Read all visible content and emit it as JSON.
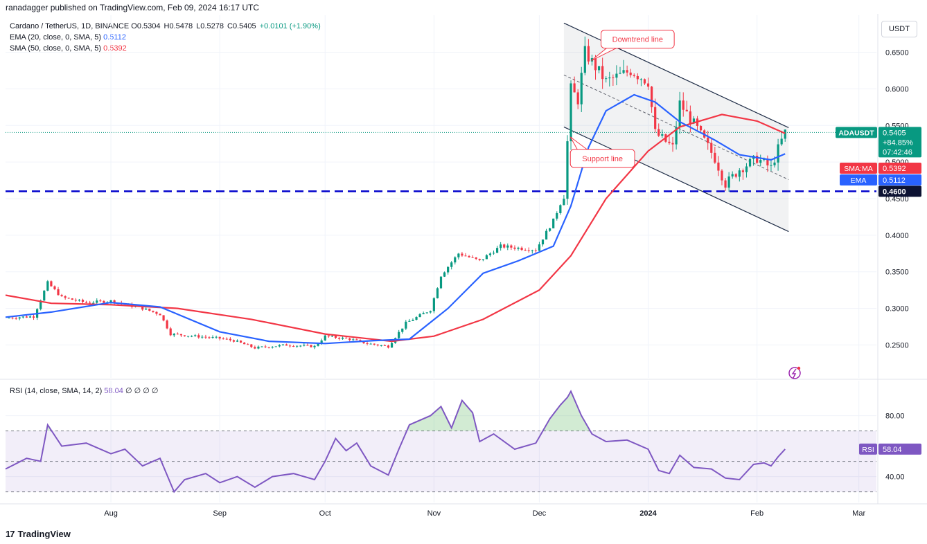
{
  "header": {
    "text": "ranadagger published on TradingView.com, Feb 09, 2024 16:17 UTC"
  },
  "legend": {
    "symbol": "Cardano / TetherUS, 1D, BINANCE",
    "o": "O0.5304",
    "h": "H0.5478",
    "l": "L0.5278",
    "c": "C0.5405",
    "change": "+0.0101 (+1.90%)",
    "ema_label": "EMA (20, close, 0, SMA, 5)",
    "ema_value": "0.5112",
    "sma_label": "SMA (50, close, 0, SMA, 5)",
    "sma_value": "0.5392",
    "rsi_label": "RSI (14, close, SMA, 14, 2)",
    "rsi_value": "58.04",
    "rsi_extra": "∅ ∅ ∅ ∅"
  },
  "currency_button": "USDT",
  "footer": {
    "logo_mark": "17",
    "brand": "TradingView"
  },
  "colors": {
    "up": "#089981",
    "down": "#f23645",
    "ema": "#2962ff",
    "sma": "#f23645",
    "rsi": "#7e57c2",
    "level": "#0000cc",
    "channel": "#1e2c46"
  },
  "chart_data": [
    {
      "type": "candlestick",
      "title": "Cardano / TetherUS, 1D, BINANCE",
      "ylim": [
        0.205,
        0.695
      ],
      "yticks": [
        "0.6500",
        "0.6000",
        "0.5500",
        "0.5000",
        "0.4500",
        "0.4000",
        "0.3500",
        "0.3000",
        "0.2500"
      ],
      "xticks": [
        {
          "label": "Aug",
          "date": "2023-08-01"
        },
        {
          "label": "Sep",
          "date": "2023-09-01"
        },
        {
          "label": "Oct",
          "date": "2023-10-01"
        },
        {
          "label": "Nov",
          "date": "2023-11-01"
        },
        {
          "label": "Dec",
          "date": "2023-12-01"
        },
        {
          "label": "2024",
          "date": "2024-01-01"
        },
        {
          "label": "Feb",
          "date": "2024-02-01"
        },
        {
          "label": "Mar",
          "date": "2024-03-01"
        }
      ],
      "xlim": [
        "2023-07-02",
        "2024-03-06"
      ],
      "trend": [
        {
          "date": "2023-07-02",
          "close": 0.287
        },
        {
          "date": "2023-07-10",
          "close": 0.289
        },
        {
          "date": "2023-07-14",
          "close": 0.335
        },
        {
          "date": "2023-07-18",
          "close": 0.315
        },
        {
          "date": "2023-07-25",
          "close": 0.308
        },
        {
          "date": "2023-08-01",
          "close": 0.31
        },
        {
          "date": "2023-08-10",
          "close": 0.3
        },
        {
          "date": "2023-08-15",
          "close": 0.292
        },
        {
          "date": "2023-08-18",
          "close": 0.265
        },
        {
          "date": "2023-08-25",
          "close": 0.262
        },
        {
          "date": "2023-09-01",
          "close": 0.259
        },
        {
          "date": "2023-09-05",
          "close": 0.256
        },
        {
          "date": "2023-09-11",
          "close": 0.246
        },
        {
          "date": "2023-09-20",
          "close": 0.25
        },
        {
          "date": "2023-09-28",
          "close": 0.248
        },
        {
          "date": "2023-10-01",
          "close": 0.262
        },
        {
          "date": "2023-10-08",
          "close": 0.258
        },
        {
          "date": "2023-10-13",
          "close": 0.252
        },
        {
          "date": "2023-10-19",
          "close": 0.248
        },
        {
          "date": "2023-10-24",
          "close": 0.28
        },
        {
          "date": "2023-10-31",
          "close": 0.298
        },
        {
          "date": "2023-11-03",
          "close": 0.345
        },
        {
          "date": "2023-11-08",
          "close": 0.375
        },
        {
          "date": "2023-11-14",
          "close": 0.365
        },
        {
          "date": "2023-11-20",
          "close": 0.385
        },
        {
          "date": "2023-11-30",
          "close": 0.38
        },
        {
          "date": "2023-12-05",
          "close": 0.42
        },
        {
          "date": "2023-12-08",
          "close": 0.455
        },
        {
          "date": "2023-12-10",
          "close": 0.6
        },
        {
          "date": "2023-12-12",
          "close": 0.585
        },
        {
          "date": "2023-12-14",
          "close": 0.65
        },
        {
          "date": "2023-12-20",
          "close": 0.61
        },
        {
          "date": "2023-12-27",
          "close": 0.625
        },
        {
          "date": "2024-01-01",
          "close": 0.61
        },
        {
          "date": "2024-01-03",
          "close": 0.54
        },
        {
          "date": "2024-01-08",
          "close": 0.52
        },
        {
          "date": "2024-01-10",
          "close": 0.58
        },
        {
          "date": "2024-01-15",
          "close": 0.545
        },
        {
          "date": "2024-01-20",
          "close": 0.505
        },
        {
          "date": "2024-01-23",
          "close": 0.47
        },
        {
          "date": "2024-01-27",
          "close": 0.49
        },
        {
          "date": "2024-02-01",
          "close": 0.505
        },
        {
          "date": "2024-02-05",
          "close": 0.492
        },
        {
          "date": "2024-02-07",
          "close": 0.518
        },
        {
          "date": "2024-02-09",
          "close": 0.5405
        }
      ],
      "series": [
        {
          "name": "EMA (20, close, 0, SMA, 5)",
          "points": [
            {
              "date": "2023-07-02",
              "value": 0.288
            },
            {
              "date": "2023-07-15",
              "value": 0.295
            },
            {
              "date": "2023-08-01",
              "value": 0.308
            },
            {
              "date": "2023-08-15",
              "value": 0.302
            },
            {
              "date": "2023-09-01",
              "value": 0.268
            },
            {
              "date": "2023-09-15",
              "value": 0.255
            },
            {
              "date": "2023-10-01",
              "value": 0.252
            },
            {
              "date": "2023-10-15",
              "value": 0.256
            },
            {
              "date": "2023-10-25",
              "value": 0.258
            },
            {
              "date": "2023-11-05",
              "value": 0.3
            },
            {
              "date": "2023-11-15",
              "value": 0.348
            },
            {
              "date": "2023-11-25",
              "value": 0.365
            },
            {
              "date": "2023-12-05",
              "value": 0.385
            },
            {
              "date": "2023-12-10",
              "value": 0.44
            },
            {
              "date": "2023-12-15",
              "value": 0.52
            },
            {
              "date": "2023-12-20",
              "value": 0.57
            },
            {
              "date": "2023-12-28",
              "value": 0.592
            },
            {
              "date": "2024-01-03",
              "value": 0.582
            },
            {
              "date": "2024-01-10",
              "value": 0.555
            },
            {
              "date": "2024-01-20",
              "value": 0.53
            },
            {
              "date": "2024-01-27",
              "value": 0.51
            },
            {
              "date": "2024-02-05",
              "value": 0.503
            },
            {
              "date": "2024-02-09",
              "value": 0.5112
            }
          ]
        },
        {
          "name": "SMA (50, close, 0, SMA, 5)",
          "points": [
            {
              "date": "2023-07-02",
              "value": 0.318
            },
            {
              "date": "2023-07-15",
              "value": 0.307
            },
            {
              "date": "2023-08-01",
              "value": 0.305
            },
            {
              "date": "2023-08-20",
              "value": 0.3
            },
            {
              "date": "2023-09-10",
              "value": 0.285
            },
            {
              "date": "2023-10-01",
              "value": 0.265
            },
            {
              "date": "2023-10-20",
              "value": 0.255
            },
            {
              "date": "2023-11-01",
              "value": 0.262
            },
            {
              "date": "2023-11-15",
              "value": 0.285
            },
            {
              "date": "2023-12-01",
              "value": 0.325
            },
            {
              "date": "2023-12-10",
              "value": 0.372
            },
            {
              "date": "2023-12-20",
              "value": 0.45
            },
            {
              "date": "2024-01-01",
              "value": 0.515
            },
            {
              "date": "2024-01-10",
              "value": 0.548
            },
            {
              "date": "2024-01-22",
              "value": 0.565
            },
            {
              "date": "2024-02-01",
              "value": 0.556
            },
            {
              "date": "2024-02-09",
              "value": 0.5392
            }
          ]
        }
      ],
      "price_line": {
        "label": "ADAUSDT",
        "value": "0.5405",
        "change": "+84.85%",
        "countdown": "07:42:46"
      },
      "value_tags": [
        {
          "label": "SMA:MA",
          "value": "0.5392"
        },
        {
          "label": "EMA",
          "value": "0.5112"
        }
      ],
      "level": {
        "value": 0.46,
        "label": "0.4600"
      },
      "channel": {
        "upper": [
          {
            "date": "2023-12-08",
            "value": 0.69
          },
          {
            "date": "2024-02-10",
            "value": 0.547
          }
        ],
        "lower": [
          {
            "date": "2023-12-08",
            "value": 0.548
          },
          {
            "date": "2024-02-10",
            "value": 0.405
          }
        ],
        "middle": [
          {
            "date": "2023-12-08",
            "value": 0.619
          },
          {
            "date": "2024-02-10",
            "value": 0.476
          }
        ]
      },
      "annotations": [
        {
          "text": "Downtrend line",
          "date": "2023-12-29",
          "value": 0.668
        },
        {
          "text": "Support line",
          "date": "2023-12-19",
          "value": 0.505
        }
      ]
    },
    {
      "type": "line",
      "title": "RSI (14, close, SMA, 14, 2)",
      "ylim": [
        23,
        103
      ],
      "yticks": [
        "80.00",
        "40.00"
      ],
      "bands": {
        "upper": 70,
        "middle": 50,
        "lower": 30
      },
      "series": [
        {
          "name": "RSI",
          "points": [
            {
              "date": "2023-07-02",
              "value": 45
            },
            {
              "date": "2023-07-08",
              "value": 52
            },
            {
              "date": "2023-07-12",
              "value": 50
            },
            {
              "date": "2023-07-14",
              "value": 74
            },
            {
              "date": "2023-07-18",
              "value": 60
            },
            {
              "date": "2023-07-25",
              "value": 62
            },
            {
              "date": "2023-08-01",
              "value": 55
            },
            {
              "date": "2023-08-05",
              "value": 58
            },
            {
              "date": "2023-08-10",
              "value": 47
            },
            {
              "date": "2023-08-15",
              "value": 52
            },
            {
              "date": "2023-08-19",
              "value": 30
            },
            {
              "date": "2023-08-22",
              "value": 38
            },
            {
              "date": "2023-08-28",
              "value": 42
            },
            {
              "date": "2023-09-01",
              "value": 36
            },
            {
              "date": "2023-09-06",
              "value": 40
            },
            {
              "date": "2023-09-11",
              "value": 33
            },
            {
              "date": "2023-09-16",
              "value": 40
            },
            {
              "date": "2023-09-22",
              "value": 42
            },
            {
              "date": "2023-09-28",
              "value": 38
            },
            {
              "date": "2023-10-01",
              "value": 50
            },
            {
              "date": "2023-10-04",
              "value": 65
            },
            {
              "date": "2023-10-07",
              "value": 57
            },
            {
              "date": "2023-10-10",
              "value": 62
            },
            {
              "date": "2023-10-14",
              "value": 47
            },
            {
              "date": "2023-10-19",
              "value": 41
            },
            {
              "date": "2023-10-22",
              "value": 58
            },
            {
              "date": "2023-10-25",
              "value": 74
            },
            {
              "date": "2023-10-31",
              "value": 80
            },
            {
              "date": "2023-11-03",
              "value": 86
            },
            {
              "date": "2023-11-06",
              "value": 72
            },
            {
              "date": "2023-11-09",
              "value": 90
            },
            {
              "date": "2023-11-12",
              "value": 82
            },
            {
              "date": "2023-11-14",
              "value": 63
            },
            {
              "date": "2023-11-18",
              "value": 68
            },
            {
              "date": "2023-11-24",
              "value": 58
            },
            {
              "date": "2023-11-30",
              "value": 62
            },
            {
              "date": "2023-12-04",
              "value": 78
            },
            {
              "date": "2023-12-07",
              "value": 87
            },
            {
              "date": "2023-12-09",
              "value": 92
            },
            {
              "date": "2023-12-10",
              "value": 96
            },
            {
              "date": "2023-12-13",
              "value": 80
            },
            {
              "date": "2023-12-16",
              "value": 68
            },
            {
              "date": "2023-12-20",
              "value": 63
            },
            {
              "date": "2023-12-26",
              "value": 64
            },
            {
              "date": "2024-01-01",
              "value": 58
            },
            {
              "date": "2024-01-04",
              "value": 44
            },
            {
              "date": "2024-01-07",
              "value": 42
            },
            {
              "date": "2024-01-10",
              "value": 54
            },
            {
              "date": "2024-01-14",
              "value": 46
            },
            {
              "date": "2024-01-19",
              "value": 45
            },
            {
              "date": "2024-01-23",
              "value": 39
            },
            {
              "date": "2024-01-27",
              "value": 38
            },
            {
              "date": "2024-01-31",
              "value": 48
            },
            {
              "date": "2024-02-03",
              "value": 49
            },
            {
              "date": "2024-02-05",
              "value": 47
            },
            {
              "date": "2024-02-07",
              "value": 53
            },
            {
              "date": "2024-02-09",
              "value": 58.04
            }
          ]
        }
      ]
    }
  ]
}
